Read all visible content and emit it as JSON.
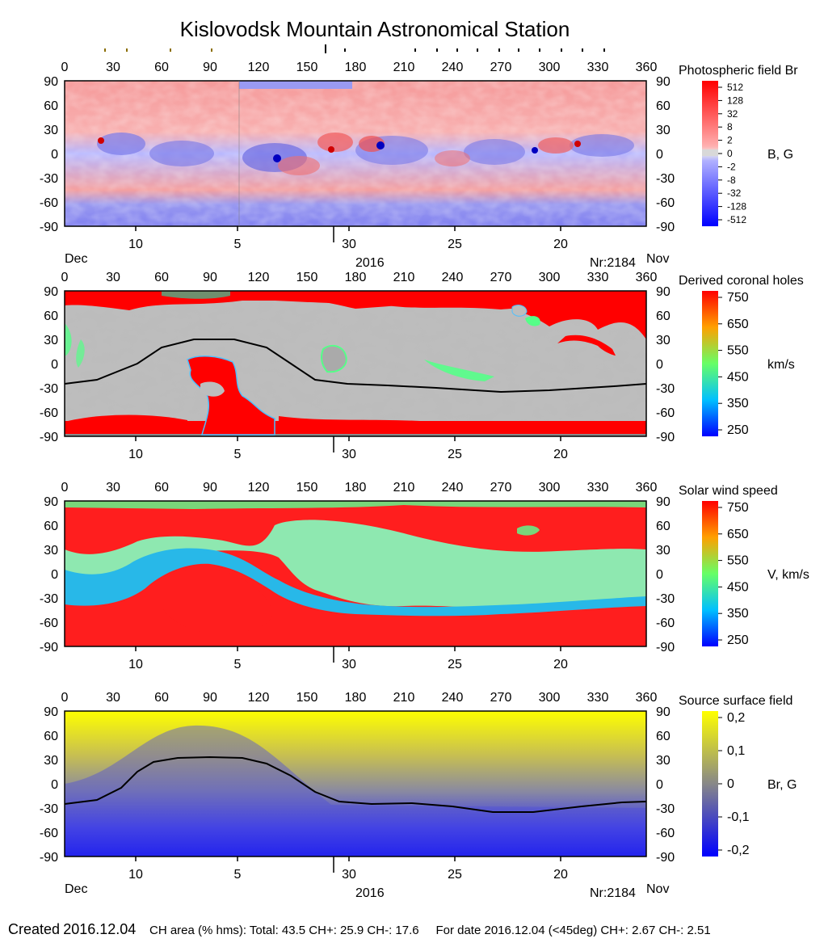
{
  "title": "Kislovodsk Mountain Astronomical Station",
  "chart_data": [
    {
      "type": "heatmap",
      "title": "Photospheric field Br",
      "colorbar_label": "B, G",
      "colorbar_ticks": [
        "512",
        "128",
        "32",
        "8",
        "2",
        "0",
        "-2",
        "-8",
        "-32",
        "-128",
        "-512"
      ],
      "colorscale": [
        "#ff0000",
        "#ffffff",
        "#0000ff"
      ]
    },
    {
      "type": "heatmap",
      "title": "Derived coronal holes",
      "colorbar_label": "km/s",
      "colorbar_ticks": [
        "750",
        "650",
        "550",
        "450",
        "350",
        "250"
      ],
      "colorscale": [
        "#0000ff",
        "#00c8ff",
        "#55ff88",
        "#ffff00",
        "#ff0000"
      ],
      "neutral_line": [
        [
          0,
          -25
        ],
        [
          20,
          -20
        ],
        [
          45,
          0
        ],
        [
          60,
          20
        ],
        [
          80,
          30
        ],
        [
          105,
          30
        ],
        [
          125,
          20
        ],
        [
          140,
          0
        ],
        [
          155,
          -20
        ],
        [
          175,
          -25
        ],
        [
          200,
          -27
        ],
        [
          230,
          -30
        ],
        [
          270,
          -35
        ],
        [
          300,
          -33
        ],
        [
          340,
          -28
        ],
        [
          360,
          -25
        ]
      ]
    },
    {
      "type": "heatmap",
      "title": "Solar wind speed",
      "colorbar_label": "V, km/s",
      "colorbar_ticks": [
        "750",
        "650",
        "550",
        "450",
        "350",
        "250"
      ],
      "colorscale": [
        "#0000ff",
        "#00c8ff",
        "#55ff88",
        "#ffff00",
        "#ff0000"
      ]
    },
    {
      "type": "heatmap",
      "title": "Source surface field",
      "colorbar_label": "Br, G",
      "colorbar_ticks": [
        "0,2",
        "0,1",
        "0",
        "-0,1",
        "-0,2"
      ],
      "colorscale": [
        "#ffff00",
        "#888888",
        "#0000ff"
      ],
      "neutral_line": [
        [
          0,
          -25
        ],
        [
          20,
          -20
        ],
        [
          35,
          -5
        ],
        [
          45,
          15
        ],
        [
          55,
          27
        ],
        [
          70,
          32
        ],
        [
          90,
          33
        ],
        [
          110,
          32
        ],
        [
          125,
          25
        ],
        [
          140,
          10
        ],
        [
          155,
          -10
        ],
        [
          170,
          -22
        ],
        [
          190,
          -25
        ],
        [
          215,
          -24
        ],
        [
          240,
          -28
        ],
        [
          265,
          -35
        ],
        [
          290,
          -35
        ],
        [
          320,
          -28
        ],
        [
          345,
          -23
        ],
        [
          360,
          -22
        ]
      ]
    }
  ],
  "axes": {
    "x_ticks": [
      "0",
      "30",
      "60",
      "90",
      "120",
      "150",
      "180",
      "210",
      "240",
      "270",
      "300",
      "330",
      "360"
    ],
    "y_ticks": [
      "90",
      "60",
      "30",
      "0",
      "-30",
      "-60",
      "-90"
    ],
    "date_ticks": [
      "10",
      "5",
      "30",
      "25",
      "20"
    ]
  },
  "labels": {
    "month_left": "Dec",
    "month_right": "Nov",
    "year": "2016",
    "rotation": "Nr:2184"
  },
  "footer": {
    "created_label": "Created",
    "created_date": "2016.12.04",
    "ch_area": "CH area (% hms): Total: 43.5 CH+: 25.9   CH-: 17.6",
    "for_date": "For date 2016.12.04 (<45deg) CH+: 2.67    CH-: 2.51"
  }
}
